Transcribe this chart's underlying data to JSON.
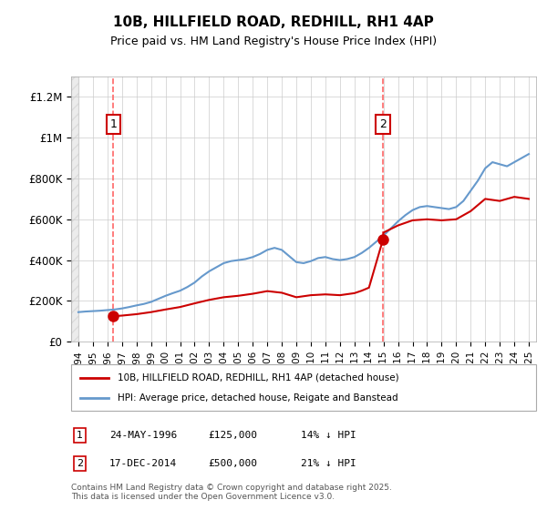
{
  "title": "10B, HILLFIELD ROAD, REDHILL, RH1 4AP",
  "subtitle": "Price paid vs. HM Land Registry's House Price Index (HPI)",
  "legend_property": "10B, HILLFIELD ROAD, REDHILL, RH1 4AP (detached house)",
  "legend_hpi": "HPI: Average price, detached house, Reigate and Banstead",
  "footer": "Contains HM Land Registry data © Crown copyright and database right 2025.\nThis data is licensed under the Open Government Licence v3.0.",
  "purchase_1_date": 1996.4,
  "purchase_1_price": 125000,
  "purchase_1_label": "1",
  "purchase_1_text": "24-MAY-1996    £125,000    14% ↓ HPI",
  "purchase_2_date": 2014.96,
  "purchase_2_price": 500000,
  "purchase_2_label": "2",
  "purchase_2_text": "17-DEC-2014    £500,000    21% ↓ HPI",
  "property_color": "#cc0000",
  "hpi_color": "#6699cc",
  "vline_color": "#ff6666",
  "background_color": "#ffffff",
  "grid_color": "#cccccc",
  "hatch_color": "#cccccc",
  "ylim": [
    0,
    1300000
  ],
  "xlim": [
    1993.5,
    2025.5
  ],
  "yticks": [
    0,
    200000,
    400000,
    600000,
    800000,
    1000000,
    1200000
  ],
  "ytick_labels": [
    "£0",
    "£200K",
    "£400K",
    "£600K",
    "£800K",
    "£1M",
    "£1.2M"
  ],
  "xticks": [
    1994,
    1995,
    1996,
    1997,
    1998,
    1999,
    2000,
    2001,
    2002,
    2003,
    2004,
    2005,
    2006,
    2007,
    2008,
    2009,
    2010,
    2011,
    2012,
    2013,
    2014,
    2015,
    2016,
    2017,
    2018,
    2019,
    2020,
    2021,
    2022,
    2023,
    2024,
    2025
  ],
  "hpi_data": {
    "years": [
      1994.0,
      1994.5,
      1995.0,
      1995.5,
      1996.0,
      1996.5,
      1997.0,
      1997.5,
      1998.0,
      1998.5,
      1999.0,
      1999.5,
      2000.0,
      2000.5,
      2001.0,
      2001.5,
      2002.0,
      2002.5,
      2003.0,
      2003.5,
      2004.0,
      2004.5,
      2005.0,
      2005.5,
      2006.0,
      2006.5,
      2007.0,
      2007.5,
      2008.0,
      2008.5,
      2009.0,
      2009.5,
      2010.0,
      2010.5,
      2011.0,
      2011.5,
      2012.0,
      2012.5,
      2013.0,
      2013.5,
      2014.0,
      2014.5,
      2015.0,
      2015.5,
      2016.0,
      2016.5,
      2017.0,
      2017.5,
      2018.0,
      2018.5,
      2019.0,
      2019.5,
      2020.0,
      2020.5,
      2021.0,
      2021.5,
      2022.0,
      2022.5,
      2023.0,
      2023.5,
      2024.0,
      2024.5,
      2025.0
    ],
    "values": [
      145000,
      148000,
      150000,
      152000,
      155000,
      158000,
      163000,
      170000,
      178000,
      185000,
      195000,
      210000,
      225000,
      238000,
      250000,
      268000,
      290000,
      320000,
      345000,
      365000,
      385000,
      395000,
      400000,
      405000,
      415000,
      430000,
      450000,
      460000,
      450000,
      420000,
      390000,
      385000,
      395000,
      410000,
      415000,
      405000,
      400000,
      405000,
      415000,
      435000,
      460000,
      490000,
      520000,
      555000,
      590000,
      620000,
      645000,
      660000,
      665000,
      660000,
      655000,
      650000,
      660000,
      690000,
      740000,
      790000,
      850000,
      880000,
      870000,
      860000,
      880000,
      900000,
      920000
    ]
  },
  "property_data": {
    "years": [
      1996.4,
      2014.96
    ],
    "values": [
      125000,
      500000
    ]
  },
  "property_line_data": {
    "years": [
      1996.4,
      1997.0,
      1998.0,
      1999.0,
      2000.0,
      2001.0,
      2002.0,
      2003.0,
      2004.0,
      2005.0,
      2006.0,
      2007.0,
      2008.0,
      2009.0,
      2010.0,
      2011.0,
      2012.0,
      2013.0,
      2013.5,
      2014.0,
      2014.96,
      2015.0,
      2016.0,
      2017.0,
      2018.0,
      2019.0,
      2020.0,
      2021.0,
      2022.0,
      2023.0,
      2024.0,
      2025.0
    ],
    "values": [
      125000,
      128000,
      135000,
      145000,
      158000,
      170000,
      188000,
      205000,
      218000,
      225000,
      235000,
      248000,
      240000,
      218000,
      228000,
      232000,
      228000,
      238000,
      250000,
      265000,
      500000,
      535000,
      570000,
      595000,
      600000,
      595000,
      600000,
      640000,
      700000,
      690000,
      710000,
      700000
    ]
  }
}
